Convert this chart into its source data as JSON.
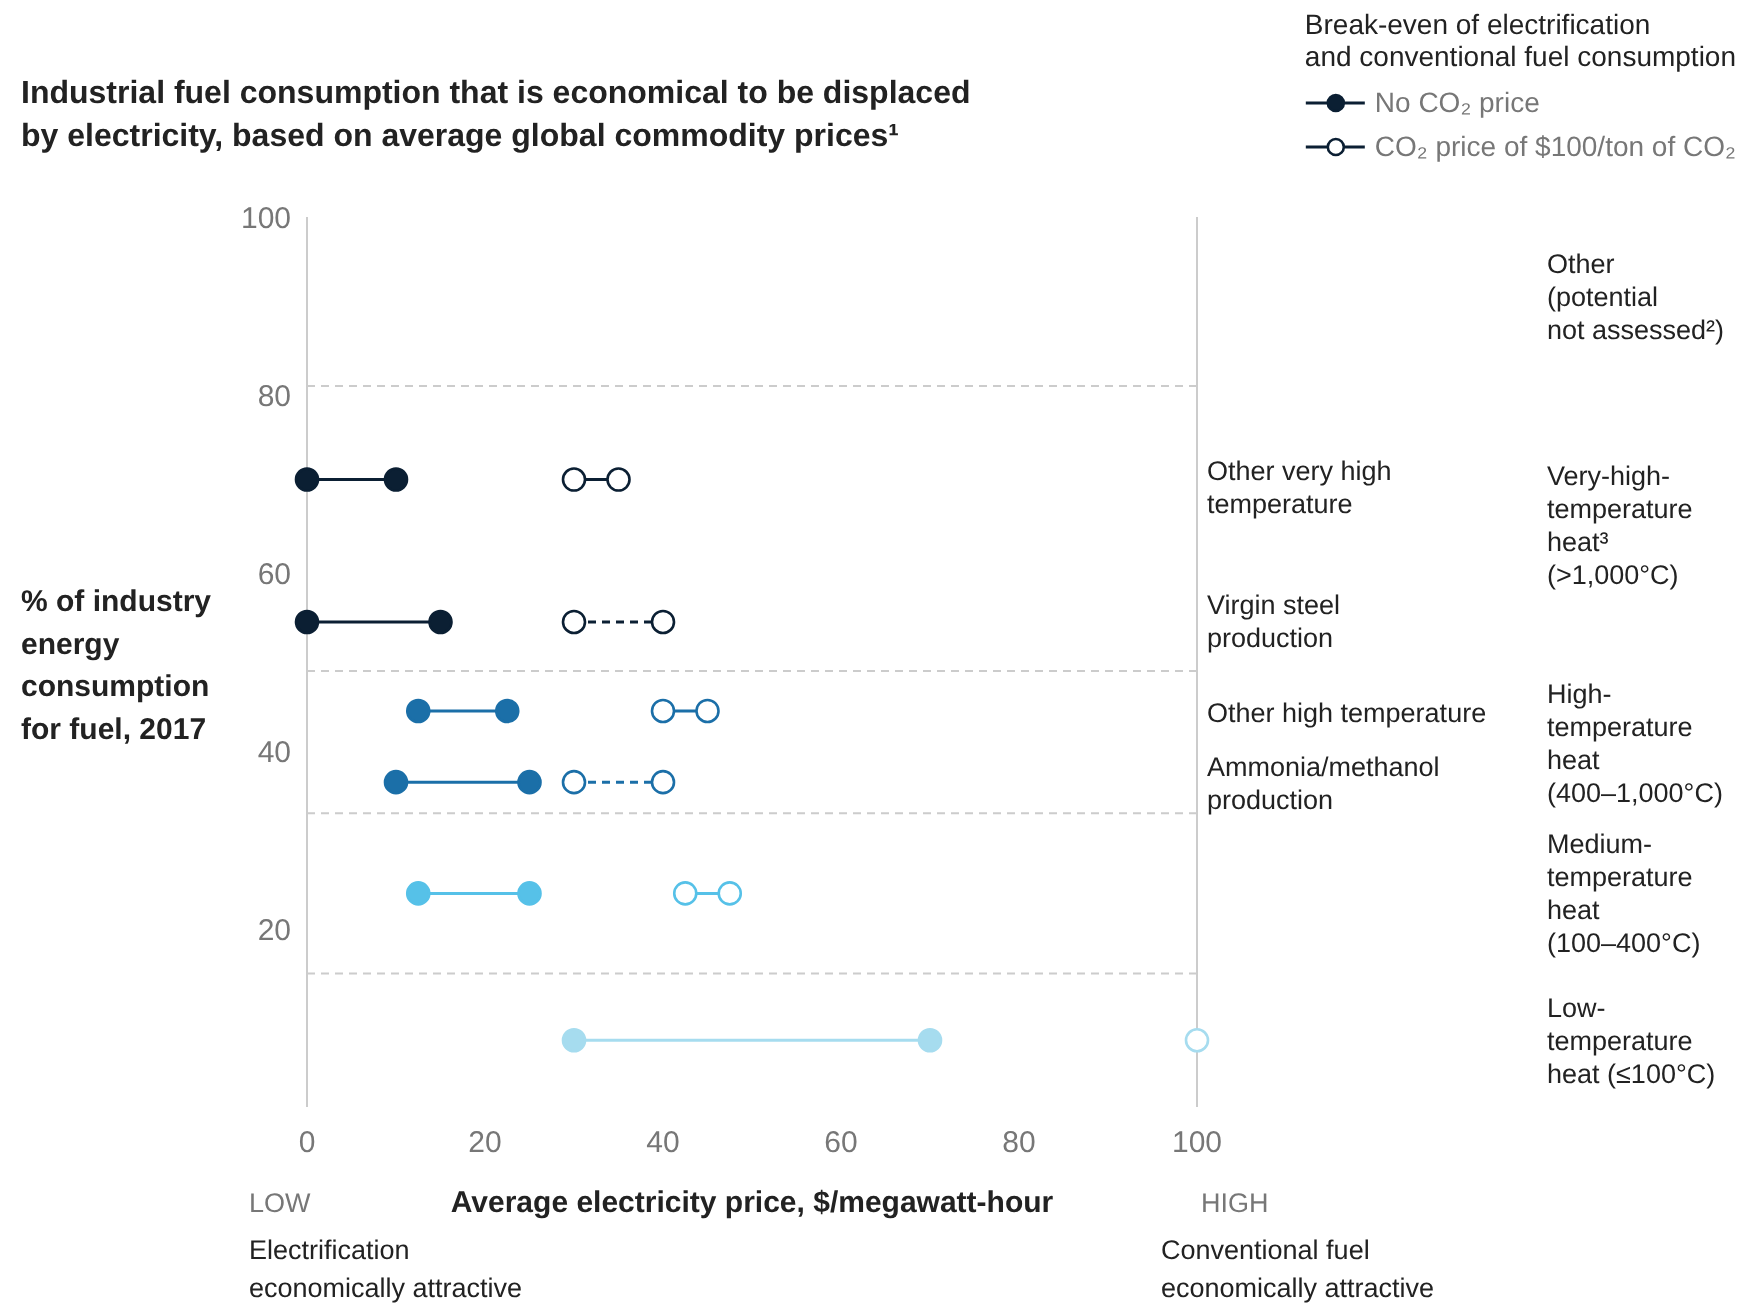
{
  "chart_data": {
    "type": "line",
    "title": "Industrial fuel consumption that is economical to be displaced\nby electricity, based on average global commodity prices¹",
    "xlabel": "Average electricity price, $/megawatt-hour",
    "ylabel": "% of industry\nenergy\nconsumption\nfor fuel, 2017",
    "legend_title": "Break-even of electrification\nand conventional fuel consumption",
    "xlim": [
      0,
      100
    ],
    "ylim": [
      0,
      100
    ],
    "xticks": [
      0,
      20,
      40,
      60,
      80,
      100
    ],
    "yticks": [
      20,
      40,
      60,
      80,
      100
    ],
    "legend": "top right",
    "marker": "circle",
    "series": [
      {
        "name": "No CO₂ price",
        "color": "#0b1f33",
        "x": [
          0,
          10
        ],
        "values": [
          70.5,
          70.5
        ]
      },
      {
        "name": "CO₂ price of $100/ton of CO₂",
        "color": "#0b1f33",
        "x": [
          30,
          35
        ],
        "values": [
          70.5,
          70.5
        ]
      },
      {
        "color": "#0b1f33",
        "x": [
          0,
          15
        ],
        "values": [
          54.5,
          54.5
        ]
      },
      {
        "line_style": "dashed",
        "color": "#0b1f33",
        "x": [
          30,
          40
        ],
        "values": [
          54.5,
          54.5
        ]
      },
      {
        "color": "#1b6fa8",
        "x": [
          12.5,
          22.5
        ],
        "values": [
          44.5,
          44.5
        ]
      },
      {
        "color": "#1b6fa8",
        "x": [
          40,
          45
        ],
        "values": [
          44.5,
          44.5
        ]
      },
      {
        "color": "#1b6fa8",
        "x": [
          10,
          25
        ],
        "values": [
          36.5,
          36.5
        ]
      },
      {
        "line_style": "dashed",
        "color": "#1b6fa8",
        "x": [
          30,
          40
        ],
        "values": [
          36.5,
          36.5
        ]
      },
      {
        "color": "#56c1e8",
        "x": [
          12.5,
          25
        ],
        "values": [
          24,
          24
        ]
      },
      {
        "color": "#56c1e8",
        "x": [
          42.5,
          47.5
        ],
        "values": [
          24,
          24
        ]
      },
      {
        "color": "#a6dcef",
        "x": [
          30,
          70
        ],
        "values": [
          7.5,
          7.5
        ]
      },
      {
        "color": "#a6dcef",
        "x": [
          100
        ],
        "values": [
          7.5
        ]
      }
    ],
    "ref_lines": [
      {
        "axis": "y",
        "value": 81,
        "color": "#cccccc",
        "line_style": "dashed"
      },
      {
        "axis": "y",
        "value": 49,
        "color": "#cccccc",
        "line_style": "dashed"
      },
      {
        "axis": "y",
        "value": 33,
        "color": "#cccccc",
        "line_style": "dashed"
      },
      {
        "axis": "y",
        "value": 15,
        "color": "#cccccc",
        "line_style": "dashed"
      }
    ],
    "annotations": [
      "Other very high\ntemperature",
      "Virgin steel\nproduction",
      "Other high temperature",
      "Ammonia/methanol\nproduction",
      "Other\n(potential\nnot assessed²)",
      "Very-high-\ntemperature\nheat³\n(>1,000°C)",
      "High-\ntemperature\nheat\n(400–1,000°C)",
      "Medium-\ntemperature\nheat\n(100–400°C)",
      "Low-\ntemperature\nheat (≤100°C)",
      "LOW",
      "HIGH",
      "Electrification\neconomically attractive",
      "Conventional fuel\neconomically attractive"
    ]
  }
}
